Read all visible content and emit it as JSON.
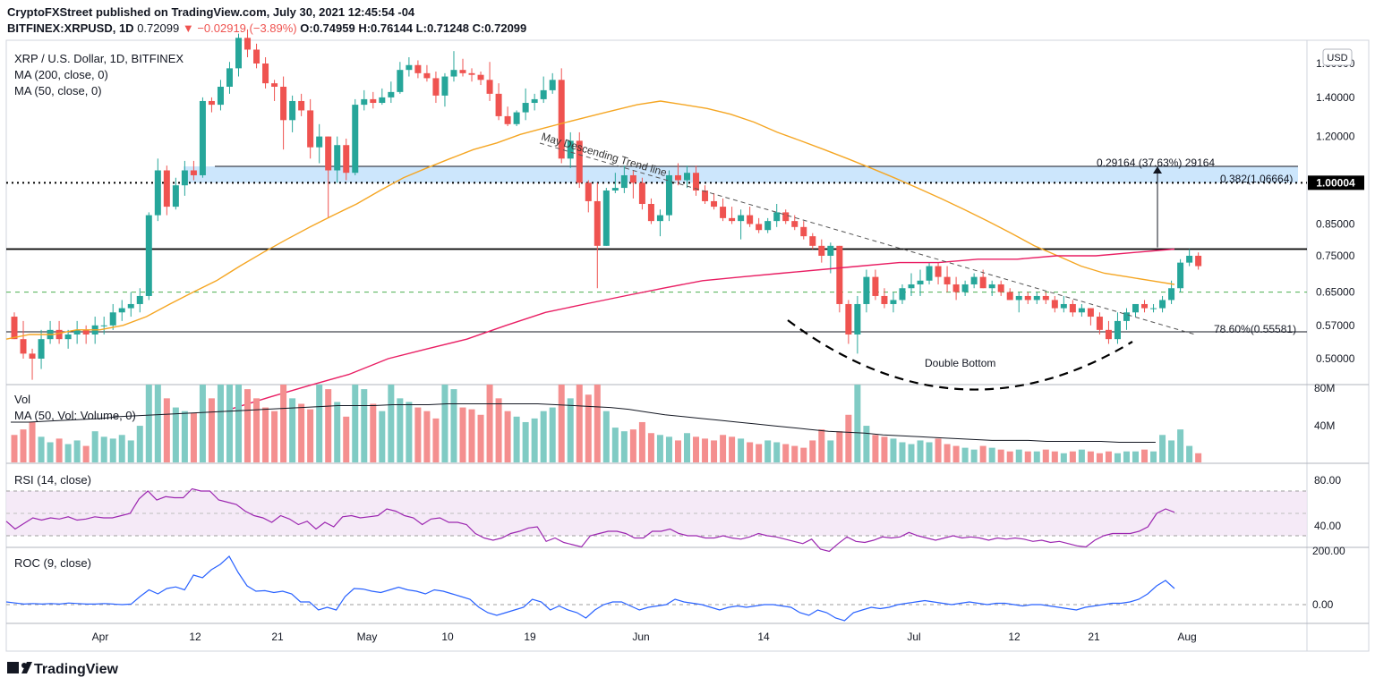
{
  "header": {
    "line1": "CryptoFXStreet published on TradingView.com, July 30, 2021 12:45:54 -04",
    "symbol": "BITFINEX:XRPUSD, 1D",
    "last": "0.72099",
    "change": "−0.02919 (−3.89%)",
    "ohlc": {
      "o": "O:0.74959",
      "h": "H:0.76144",
      "l": "L:0.71248",
      "c": "C:0.72099"
    }
  },
  "legend": {
    "title": "XRP / U.S. Dollar, 1D, BITFINEX",
    "ma200": "MA (200, close, 0)",
    "ma50": "MA (50, close, 0)",
    "vol": "Vol",
    "vol_ma": "MA (50, Vol: Volume, 0)",
    "rsi": "RSI (14, close)",
    "roc": "ROC (9, close)"
  },
  "currency_button": "USD",
  "annotations": {
    "trendline": "May Descending Trend line",
    "double_bottom": "Double Bottom",
    "measure": "0.29164 (37.63%) 29164",
    "fib_382": "0.382(1.06664)",
    "fib_786": "78.60%(0.55581)",
    "price_tag": "1.00004"
  },
  "price_axis": [
    "1.60000",
    "1.40000",
    "1.20000",
    "1.00004",
    "0.85000",
    "0.75000",
    "0.65000",
    "0.57000",
    "0.50000"
  ],
  "volume_axis": [
    "80M",
    "40M"
  ],
  "rsi_axis": [
    "80.00",
    "40.00"
  ],
  "roc_axis": [
    "200.00",
    "0.00"
  ],
  "time_axis": [
    "Apr",
    "12",
    "21",
    "May",
    "10",
    "19",
    "Jun",
    "14",
    "Jul",
    "12",
    "21",
    "Aug"
  ],
  "footer": {
    "brand": "TradingView"
  },
  "colors": {
    "up": "#26a69a",
    "down": "#ef5350",
    "ma50": "#f5a623",
    "ma200": "#e91e63",
    "rsi": "#9c27b0",
    "roc": "#2962ff",
    "zone": "#bbdefb"
  },
  "chart_data": {
    "type": "candlestick",
    "title": "XRP / U.S. Dollar, 1D, BITFINEX",
    "x_range": [
      "2021-03-22",
      "2021-08-11"
    ],
    "y_scale": "log",
    "ylim": [
      0.46,
      1.75
    ],
    "candles": [
      [
        0.59,
        0.6,
        0.54,
        0.54
      ],
      [
        0.54,
        0.58,
        0.5,
        0.51
      ],
      [
        0.51,
        0.52,
        0.46,
        0.5
      ],
      [
        0.5,
        0.56,
        0.48,
        0.54
      ],
      [
        0.54,
        0.58,
        0.53,
        0.56
      ],
      [
        0.56,
        0.58,
        0.53,
        0.54
      ],
      [
        0.54,
        0.56,
        0.52,
        0.55
      ],
      [
        0.55,
        0.58,
        0.53,
        0.56
      ],
      [
        0.56,
        0.57,
        0.53,
        0.55
      ],
      [
        0.55,
        0.59,
        0.53,
        0.57
      ],
      [
        0.57,
        0.59,
        0.55,
        0.57
      ],
      [
        0.57,
        0.62,
        0.56,
        0.6
      ],
      [
        0.6,
        0.63,
        0.58,
        0.61
      ],
      [
        0.61,
        0.65,
        0.59,
        0.62
      ],
      [
        0.62,
        0.66,
        0.6,
        0.64
      ],
      [
        0.64,
        0.89,
        0.63,
        0.88
      ],
      [
        0.88,
        1.1,
        0.86,
        1.05
      ],
      [
        1.05,
        1.07,
        0.88,
        0.91
      ],
      [
        0.91,
        1.02,
        0.9,
        0.99
      ],
      [
        0.99,
        1.09,
        0.95,
        1.05
      ],
      [
        1.05,
        1.09,
        1.01,
        1.03
      ],
      [
        1.03,
        1.4,
        1.02,
        1.38
      ],
      [
        1.38,
        1.4,
        1.32,
        1.36
      ],
      [
        1.36,
        1.5,
        1.33,
        1.46
      ],
      [
        1.46,
        1.61,
        1.42,
        1.57
      ],
      [
        1.57,
        1.8,
        1.52,
        1.77
      ],
      [
        1.77,
        1.83,
        1.64,
        1.69
      ],
      [
        1.69,
        1.73,
        1.57,
        1.6
      ],
      [
        1.6,
        1.64,
        1.45,
        1.48
      ],
      [
        1.48,
        1.5,
        1.38,
        1.46
      ],
      [
        1.46,
        1.52,
        1.14,
        1.28
      ],
      [
        1.28,
        1.41,
        1.22,
        1.38
      ],
      [
        1.38,
        1.42,
        1.3,
        1.33
      ],
      [
        1.33,
        1.39,
        1.1,
        1.15
      ],
      [
        1.15,
        1.26,
        1.08,
        1.2
      ],
      [
        1.2,
        1.2,
        0.87,
        1.05
      ],
      [
        1.05,
        1.2,
        1.0,
        1.16
      ],
      [
        1.16,
        1.19,
        1.01,
        1.04
      ],
      [
        1.04,
        1.39,
        1.03,
        1.36
      ],
      [
        1.36,
        1.44,
        1.33,
        1.39
      ],
      [
        1.39,
        1.43,
        1.34,
        1.37
      ],
      [
        1.37,
        1.45,
        1.36,
        1.4
      ],
      [
        1.4,
        1.49,
        1.37,
        1.43
      ],
      [
        1.43,
        1.61,
        1.42,
        1.56
      ],
      [
        1.56,
        1.64,
        1.52,
        1.59
      ],
      [
        1.59,
        1.62,
        1.51,
        1.54
      ],
      [
        1.54,
        1.59,
        1.49,
        1.51
      ],
      [
        1.51,
        1.55,
        1.37,
        1.41
      ],
      [
        1.41,
        1.54,
        1.35,
        1.52
      ],
      [
        1.52,
        1.68,
        1.49,
        1.56
      ],
      [
        1.56,
        1.63,
        1.52,
        1.54
      ],
      [
        1.54,
        1.57,
        1.49,
        1.53
      ],
      [
        1.53,
        1.55,
        1.47,
        1.5
      ],
      [
        1.5,
        1.61,
        1.38,
        1.42
      ],
      [
        1.42,
        1.48,
        1.28,
        1.3
      ],
      [
        1.3,
        1.35,
        1.25,
        1.26
      ],
      [
        1.26,
        1.33,
        1.25,
        1.32
      ],
      [
        1.32,
        1.45,
        1.28,
        1.37
      ],
      [
        1.37,
        1.42,
        1.33,
        1.39
      ],
      [
        1.39,
        1.52,
        1.37,
        1.44
      ],
      [
        1.44,
        1.54,
        1.42,
        1.5
      ],
      [
        1.5,
        1.57,
        1.08,
        1.1
      ],
      [
        1.1,
        1.22,
        1.06,
        1.18
      ],
      [
        1.18,
        1.22,
        0.98,
        1.0
      ],
      [
        1.0,
        1.01,
        0.89,
        0.93
      ],
      [
        0.93,
        1.0,
        0.66,
        0.78
      ],
      [
        0.78,
        0.98,
        0.78,
        0.97
      ],
      [
        0.97,
        1.04,
        0.96,
        0.98
      ],
      [
        0.98,
        1.07,
        0.96,
        1.03
      ],
      [
        1.03,
        1.05,
        0.94,
        1.0
      ],
      [
        1.0,
        1.02,
        0.9,
        0.92
      ],
      [
        0.92,
        0.94,
        0.85,
        0.86
      ],
      [
        0.86,
        0.9,
        0.81,
        0.88
      ],
      [
        0.88,
        1.05,
        0.86,
        1.03
      ],
      [
        1.03,
        1.08,
        0.99,
        1.01
      ],
      [
        1.01,
        1.07,
        0.98,
        1.04
      ],
      [
        1.04,
        1.07,
        0.95,
        0.97
      ],
      [
        0.97,
        0.99,
        0.92,
        0.93
      ],
      [
        0.93,
        0.96,
        0.9,
        0.91
      ],
      [
        0.91,
        0.94,
        0.86,
        0.87
      ],
      [
        0.87,
        0.91,
        0.85,
        0.86
      ],
      [
        0.86,
        0.9,
        0.8,
        0.88
      ],
      [
        0.88,
        0.91,
        0.84,
        0.85
      ],
      [
        0.85,
        0.87,
        0.82,
        0.83
      ],
      [
        0.83,
        0.87,
        0.82,
        0.86
      ],
      [
        0.86,
        0.92,
        0.84,
        0.89
      ],
      [
        0.89,
        0.9,
        0.85,
        0.86
      ],
      [
        0.86,
        0.88,
        0.83,
        0.84
      ],
      [
        0.84,
        0.86,
        0.8,
        0.81
      ],
      [
        0.81,
        0.82,
        0.77,
        0.78
      ],
      [
        0.78,
        0.8,
        0.73,
        0.75
      ],
      [
        0.75,
        0.79,
        0.7,
        0.78
      ],
      [
        0.78,
        0.78,
        0.6,
        0.62
      ],
      [
        0.62,
        0.63,
        0.53,
        0.55
      ],
      [
        0.55,
        0.64,
        0.51,
        0.62
      ],
      [
        0.62,
        0.71,
        0.6,
        0.69
      ],
      [
        0.69,
        0.71,
        0.63,
        0.64
      ],
      [
        0.64,
        0.66,
        0.61,
        0.62
      ],
      [
        0.62,
        0.65,
        0.6,
        0.63
      ],
      [
        0.63,
        0.67,
        0.62,
        0.66
      ],
      [
        0.66,
        0.7,
        0.64,
        0.67
      ],
      [
        0.67,
        0.71,
        0.64,
        0.68
      ],
      [
        0.68,
        0.73,
        0.67,
        0.72
      ],
      [
        0.72,
        0.73,
        0.67,
        0.69
      ],
      [
        0.69,
        0.72,
        0.65,
        0.67
      ],
      [
        0.67,
        0.69,
        0.63,
        0.65
      ],
      [
        0.65,
        0.68,
        0.64,
        0.67
      ],
      [
        0.67,
        0.7,
        0.66,
        0.69
      ],
      [
        0.69,
        0.71,
        0.66,
        0.66
      ],
      [
        0.66,
        0.68,
        0.64,
        0.67
      ],
      [
        0.67,
        0.68,
        0.64,
        0.65
      ],
      [
        0.65,
        0.66,
        0.63,
        0.63
      ],
      [
        0.63,
        0.65,
        0.6,
        0.64
      ],
      [
        0.64,
        0.65,
        0.62,
        0.63
      ],
      [
        0.63,
        0.65,
        0.62,
        0.64
      ],
      [
        0.64,
        0.65,
        0.62,
        0.63
      ],
      [
        0.63,
        0.64,
        0.6,
        0.61
      ],
      [
        0.61,
        0.64,
        0.6,
        0.62
      ],
      [
        0.62,
        0.63,
        0.59,
        0.6
      ],
      [
        0.6,
        0.62,
        0.59,
        0.61
      ],
      [
        0.61,
        0.61,
        0.57,
        0.59
      ],
      [
        0.59,
        0.6,
        0.55,
        0.56
      ],
      [
        0.56,
        0.58,
        0.53,
        0.54
      ],
      [
        0.54,
        0.6,
        0.53,
        0.58
      ],
      [
        0.58,
        0.61,
        0.56,
        0.6
      ],
      [
        0.6,
        0.62,
        0.59,
        0.62
      ],
      [
        0.62,
        0.63,
        0.6,
        0.61
      ],
      [
        0.61,
        0.62,
        0.6,
        0.61
      ],
      [
        0.61,
        0.64,
        0.6,
        0.63
      ],
      [
        0.63,
        0.68,
        0.62,
        0.66
      ],
      [
        0.66,
        0.74,
        0.65,
        0.73
      ],
      [
        0.73,
        0.77,
        0.72,
        0.75
      ],
      [
        0.75,
        0.76,
        0.71,
        0.72
      ]
    ],
    "ma50": [
      0.54,
      0.55,
      0.55,
      0.56,
      0.56,
      0.57,
      0.59,
      0.62,
      0.65,
      0.68,
      0.72,
      0.76,
      0.8,
      0.84,
      0.88,
      0.92,
      0.97,
      1.02,
      1.06,
      1.1,
      1.14,
      1.17,
      1.21,
      1.24,
      1.27,
      1.3,
      1.33,
      1.36,
      1.38,
      1.36,
      1.34,
      1.31,
      1.27,
      1.22,
      1.18,
      1.14,
      1.1,
      1.06,
      1.02,
      0.98,
      0.94,
      0.9,
      0.86,
      0.82,
      0.78,
      0.75,
      0.72,
      0.7,
      0.69,
      0.68,
      0.67
    ],
    "ma200": [
      0.41,
      0.43,
      0.45,
      0.47,
      0.5,
      0.52,
      0.54,
      0.57,
      0.6,
      0.62,
      0.64,
      0.66,
      0.68,
      0.69,
      0.7,
      0.71,
      0.72,
      0.73,
      0.73,
      0.74,
      0.74,
      0.75,
      0.75,
      0.76,
      0.77
    ],
    "fib_levels": [
      {
        "label": "0.382",
        "value": 1.06664
      },
      {
        "label": "78.60%",
        "value": 0.55581
      }
    ],
    "horizontal_levels": [
      1.00004,
      0.77,
      0.65
    ],
    "measure": {
      "from": 0.775,
      "to": 1.067,
      "change": 0.29164,
      "pct": 37.63
    },
    "volume_max": 85000000,
    "volume": [
      30,
      36,
      44,
      28,
      22,
      26,
      20,
      24,
      18,
      34,
      28,
      26,
      30,
      24,
      40,
      85,
      85,
      70,
      60,
      56,
      54,
      85,
      70,
      85,
      85,
      85,
      80,
      70,
      60,
      56,
      85,
      70,
      64,
      58,
      85,
      80,
      66,
      50,
      85,
      80,
      64,
      56,
      85,
      70,
      66,
      60,
      56,
      48,
      85,
      80,
      60,
      58,
      52,
      85,
      70,
      56,
      50,
      44,
      48,
      56,
      60,
      85,
      70,
      85,
      74,
      85,
      56,
      38,
      34,
      36,
      44,
      32,
      30,
      28,
      24,
      32,
      28,
      26,
      24,
      30,
      28,
      26,
      22,
      20,
      24,
      22,
      20,
      18,
      16,
      24,
      36,
      24,
      34,
      52,
      85,
      40,
      30,
      28,
      26,
      22,
      20,
      24,
      22,
      26,
      20,
      18,
      16,
      14,
      18,
      16,
      14,
      12,
      14,
      12,
      12,
      14,
      12,
      10,
      12,
      14,
      12,
      10,
      12,
      10,
      12,
      12,
      14,
      12,
      30,
      24,
      36,
      18,
      10
    ],
    "rsi": [
      53,
      46,
      51,
      56,
      54,
      56,
      55,
      57,
      54,
      55,
      57,
      56,
      56,
      58,
      60,
      73,
      80,
      72,
      75,
      74,
      74,
      82,
      80,
      80,
      72,
      70,
      68,
      62,
      58,
      56,
      52,
      58,
      55,
      50,
      53,
      46,
      52,
      48,
      57,
      58,
      56,
      57,
      58,
      64,
      62,
      58,
      56,
      50,
      55,
      56,
      52,
      52,
      50,
      42,
      38,
      36,
      38,
      42,
      44,
      47,
      48,
      35,
      38,
      34,
      32,
      30,
      40,
      42,
      44,
      44,
      42,
      38,
      38,
      44,
      44,
      46,
      42,
      40,
      40,
      38,
      38,
      40,
      38,
      37,
      39,
      42,
      40,
      39,
      37,
      35,
      33,
      37,
      28,
      26,
      33,
      39,
      35,
      34,
      36,
      39,
      38,
      39,
      43,
      40,
      38,
      36,
      38,
      40,
      38,
      39,
      38,
      36,
      38,
      37,
      38,
      37,
      35,
      36,
      34,
      35,
      33,
      31,
      30,
      36,
      40,
      42,
      42,
      42,
      44,
      48,
      60,
      64,
      61
    ],
    "roc": [
      10,
      6,
      2,
      4,
      2,
      4,
      2,
      6,
      4,
      2,
      2,
      4,
      2,
      0,
      2,
      30,
      55,
      40,
      60,
      66,
      55,
      110,
      100,
      130,
      150,
      180,
      120,
      70,
      50,
      52,
      45,
      50,
      40,
      10,
      10,
      -20,
      -10,
      -20,
      30,
      60,
      58,
      50,
      45,
      55,
      65,
      55,
      50,
      40,
      55,
      50,
      40,
      30,
      20,
      -10,
      -30,
      -40,
      -30,
      -20,
      -10,
      20,
      10,
      -20,
      -5,
      -20,
      -30,
      -50,
      -20,
      0,
      10,
      10,
      -5,
      -20,
      -10,
      -5,
      0,
      20,
      10,
      5,
      0,
      -10,
      -20,
      -10,
      -5,
      -10,
      -5,
      0,
      0,
      -5,
      -10,
      -30,
      -40,
      -20,
      -30,
      -50,
      -60,
      -30,
      -20,
      -10,
      -15,
      -10,
      0,
      5,
      10,
      15,
      10,
      5,
      0,
      5,
      10,
      5,
      0,
      5,
      5,
      0,
      -5,
      0,
      0,
      -5,
      -10,
      -15,
      -20,
      -10,
      -5,
      0,
      5,
      5,
      10,
      20,
      40,
      70,
      90,
      60
    ]
  }
}
